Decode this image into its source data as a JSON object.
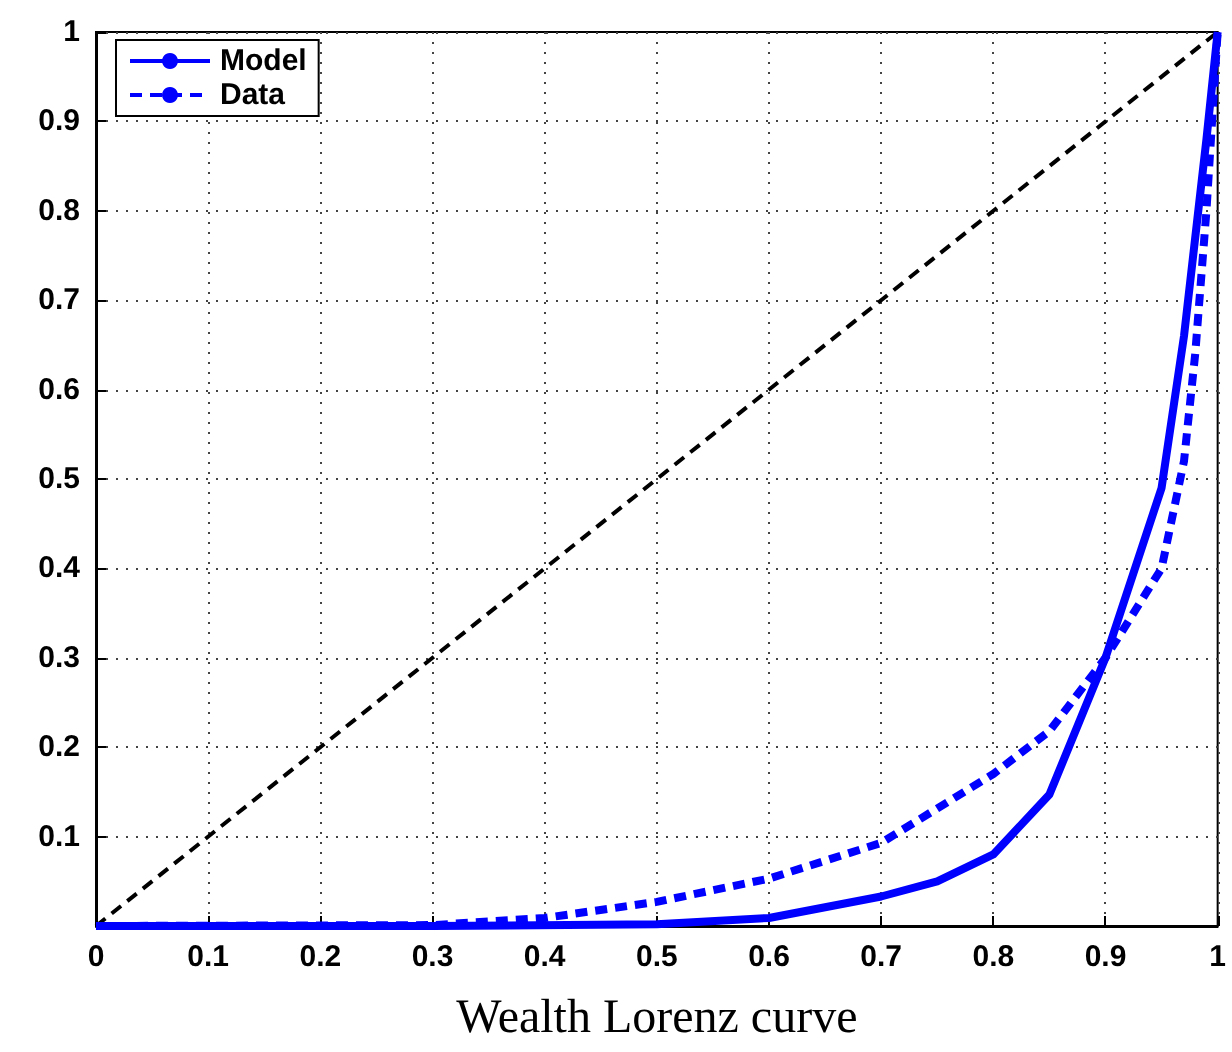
{
  "chart_data": {
    "type": "line",
    "xlabel": "Wealth Lorenz curve",
    "xlim": [
      0,
      1
    ],
    "xticks": [
      0,
      0.1,
      0.2,
      0.3,
      0.4,
      0.5,
      0.6,
      0.7,
      0.8,
      0.9,
      1
    ],
    "ylim": [
      0,
      1
    ],
    "yticks": [
      {
        "value": 0,
        "label": null
      },
      0.1,
      0.2,
      0.3,
      0.4,
      0.5,
      0.6,
      0.7,
      0.8,
      0.9,
      1
    ],
    "grid": true,
    "legend": "top left",
    "marker": "none",
    "series": [
      {
        "name": "Model",
        "color": "#0000ff",
        "line_style": "solid",
        "x": [
          0,
          0.3,
          0.5,
          0.6,
          0.7,
          0.75,
          0.8,
          0.85,
          0.9,
          0.95,
          0.97,
          0.99,
          1
        ],
        "values": [
          0,
          0,
          0.002,
          0.009,
          0.033,
          0.05,
          0.08,
          0.147,
          0.3,
          0.49,
          0.66,
          0.88,
          1
        ]
      },
      {
        "name": "Data",
        "color": "#0000ff",
        "line_style": "dashed",
        "x": [
          0,
          0.3,
          0.4,
          0.5,
          0.6,
          0.7,
          0.8,
          0.85,
          0.9,
          0.95,
          0.97,
          0.98,
          0.99,
          1
        ],
        "values": [
          0,
          0.001,
          0.009,
          0.027,
          0.053,
          0.093,
          0.17,
          0.218,
          0.3,
          0.4,
          0.52,
          0.64,
          0.8,
          1
        ]
      },
      {
        "color": "#000000",
        "line_style": "dashed",
        "x": [
          0,
          1
        ],
        "values": [
          0,
          1
        ]
      }
    ]
  }
}
